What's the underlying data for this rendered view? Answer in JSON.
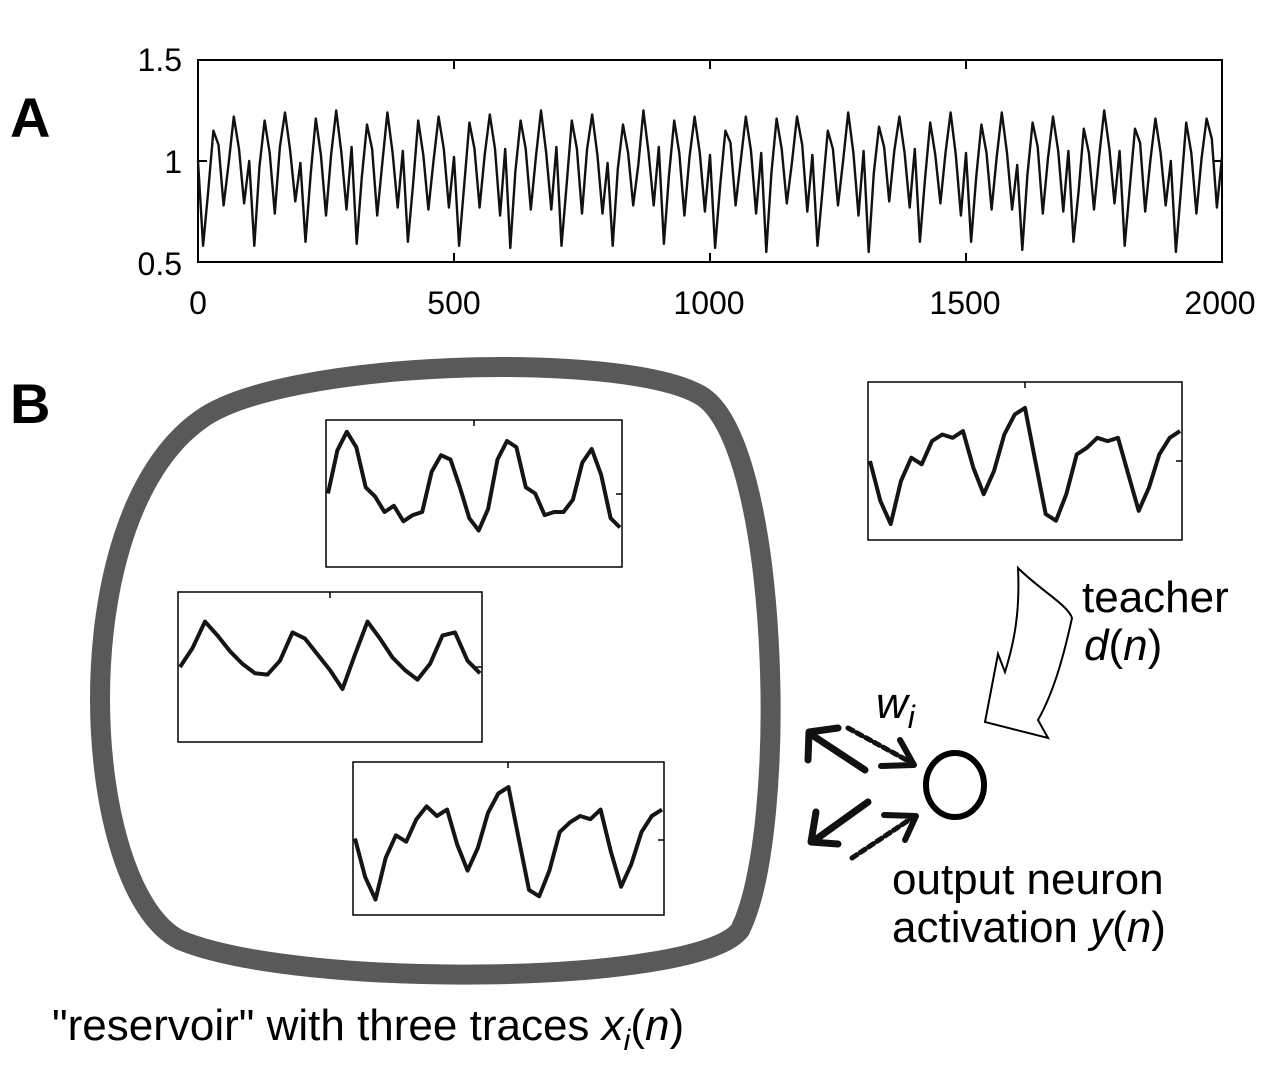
{
  "panels": {
    "a": "A",
    "b": "B"
  },
  "chart_data": {
    "type": "line",
    "x": [
      0,
      10,
      20,
      30,
      40,
      50,
      60,
      70,
      80,
      90,
      100,
      110,
      120,
      130,
      140,
      150,
      160,
      170,
      180,
      190,
      200,
      210,
      220,
      230,
      240,
      250,
      260,
      270,
      280,
      290,
      300,
      310,
      320,
      330,
      340,
      350,
      360,
      370,
      380,
      390,
      400,
      410,
      420,
      430,
      440,
      450,
      460,
      470,
      480,
      490,
      500,
      510,
      520,
      530,
      540,
      550,
      560,
      570,
      580,
      590,
      600,
      610,
      620,
      630,
      640,
      650,
      660,
      670,
      680,
      690,
      700,
      710,
      720,
      730,
      740,
      750,
      760,
      770,
      780,
      790,
      800,
      810,
      820,
      830,
      840,
      850,
      860,
      870,
      880,
      890,
      900,
      910,
      920,
      930,
      940,
      950,
      960,
      970,
      980,
      990,
      1000,
      1010,
      1020,
      1030,
      1040,
      1050,
      1060,
      1070,
      1080,
      1090,
      1100,
      1110,
      1120,
      1130,
      1140,
      1150,
      1160,
      1170,
      1180,
      1190,
      1200,
      1210,
      1220,
      1230,
      1240,
      1250,
      1260,
      1270,
      1280,
      1290,
      1300,
      1310,
      1320,
      1330,
      1340,
      1350,
      1360,
      1370,
      1380,
      1390,
      1400,
      1410,
      1420,
      1430,
      1440,
      1450,
      1460,
      1470,
      1480,
      1490,
      1500,
      1510,
      1520,
      1530,
      1540,
      1550,
      1560,
      1570,
      1580,
      1590,
      1600,
      1610,
      1620,
      1630,
      1640,
      1650,
      1660,
      1670,
      1680,
      1690,
      1700,
      1710,
      1720,
      1730,
      1740,
      1750,
      1760,
      1770,
      1780,
      1790,
      1800,
      1810,
      1820,
      1830,
      1840,
      1850,
      1860,
      1870,
      1880,
      1890,
      1900,
      1910,
      1920,
      1930,
      1940,
      1950,
      1960,
      1970,
      1980,
      1990,
      2000
    ],
    "y": [
      1.0,
      0.58,
      0.85,
      1.15,
      1.08,
      0.78,
      0.99,
      1.22,
      1.06,
      0.79,
      1.0,
      0.58,
      0.97,
      1.2,
      1.04,
      0.74,
      1.07,
      1.24,
      1.05,
      0.8,
      0.99,
      0.6,
      0.93,
      1.21,
      1.03,
      0.73,
      1.03,
      1.25,
      1.04,
      0.76,
      1.07,
      0.59,
      0.92,
      1.18,
      1.06,
      0.73,
      0.99,
      1.24,
      1.04,
      0.77,
      1.05,
      0.6,
      0.88,
      1.2,
      1.03,
      0.76,
      1.0,
      1.22,
      1.06,
      0.77,
      1.02,
      0.58,
      0.88,
      1.19,
      1.06,
      0.77,
      1.03,
      1.23,
      1.06,
      0.73,
      1.06,
      0.57,
      0.95,
      1.2,
      1.06,
      0.76,
      1.02,
      1.25,
      1.04,
      0.76,
      1.07,
      0.58,
      0.88,
      1.2,
      1.06,
      0.74,
      1.06,
      1.23,
      1.03,
      0.74,
      0.99,
      0.58,
      0.96,
      1.18,
      1.04,
      0.78,
      0.98,
      1.25,
      1.04,
      0.78,
      1.07,
      0.59,
      0.93,
      1.2,
      1.04,
      0.73,
      1.02,
      1.22,
      1.04,
      0.75,
      1.03,
      0.57,
      0.88,
      1.15,
      1.09,
      0.78,
      1.0,
      1.22,
      1.05,
      0.74,
      1.04,
      0.55,
      0.94,
      1.21,
      1.06,
      0.79,
      0.99,
      1.22,
      1.08,
      0.75,
      1.03,
      0.58,
      0.86,
      1.15,
      1.06,
      0.78,
      1.0,
      1.24,
      1.04,
      0.73,
      1.05,
      0.55,
      0.94,
      1.17,
      1.07,
      0.8,
      1.05,
      1.22,
      1.04,
      0.77,
      1.06,
      0.6,
      0.91,
      1.19,
      1.03,
      0.79,
      1.04,
      1.24,
      1.03,
      0.73,
      1.04,
      0.6,
      0.92,
      1.18,
      1.04,
      0.76,
      1.02,
      1.24,
      1.04,
      0.76,
      0.98,
      0.56,
      0.93,
      1.19,
      1.07,
      0.74,
      1.01,
      1.22,
      1.05,
      0.75,
      1.05,
      0.6,
      0.85,
      1.16,
      1.04,
      0.76,
      1.02,
      1.25,
      1.06,
      0.79,
      1.05,
      0.58,
      0.87,
      1.16,
      1.09,
      0.75,
      1.0,
      1.21,
      1.04,
      0.78,
      1.0,
      0.55,
      0.86,
      1.19,
      1.04,
      0.74,
      1.01,
      1.21,
      1.11,
      0.77,
      1.02
    ],
    "xlim": [
      0,
      2000
    ],
    "ylim": [
      0.5,
      1.5
    ],
    "xticks": [
      "0",
      "500",
      "1000",
      "1500",
      "2000"
    ],
    "yticks": [
      "0.5",
      "1",
      "1.5"
    ],
    "grid": false
  },
  "diagram": {
    "caption_prefix": "\"reservoir\" with three traces ",
    "caption_var": "x",
    "caption_sub": "i",
    "caption_open": "(",
    "caption_arg": "n",
    "caption_close": ")",
    "teacher_word": "teacher",
    "teacher_var": "d",
    "teacher_open": "(",
    "teacher_arg": "n",
    "teacher_close": ")",
    "weight_var": "w",
    "weight_sub": "i",
    "output_line1": "output neuron",
    "output_line2_word": "activation ",
    "output_var": "y",
    "output_open": "(",
    "output_arg": "n",
    "output_close": ")",
    "colors": {
      "reservoir_outline": "#595959",
      "ink": "#1a1a1a"
    },
    "traces": {
      "reservoir_1": [
        0.0,
        0.7,
        1.0,
        0.75,
        0.1,
        -0.05,
        -0.3,
        -0.2,
        -0.45,
        -0.35,
        -0.3,
        0.35,
        0.62,
        0.55,
        0.1,
        -0.4,
        -0.6,
        -0.25,
        0.55,
        0.85,
        0.75,
        0.1,
        0.0,
        -0.35,
        -0.3,
        -0.3,
        -0.1,
        0.5,
        0.72,
        0.3,
        -0.4,
        -0.55
      ],
      "reservoir_2": [
        0.0,
        0.3,
        0.72,
        0.5,
        0.25,
        0.05,
        -0.1,
        -0.12,
        0.1,
        0.55,
        0.45,
        0.2,
        -0.05,
        -0.35,
        0.2,
        0.72,
        0.45,
        0.15,
        -0.05,
        -0.2,
        0.05,
        0.5,
        0.55,
        0.1,
        -0.1
      ],
      "reservoir_3": [
        0.0,
        -0.6,
        -0.95,
        -0.3,
        0.05,
        -0.05,
        0.3,
        0.5,
        0.35,
        0.45,
        -0.1,
        -0.5,
        -0.15,
        0.4,
        0.7,
        0.8,
        0.0,
        -0.8,
        -0.9,
        -0.5,
        0.1,
        0.25,
        0.35,
        0.3,
        0.45,
        -0.2,
        -0.75,
        -0.4,
        0.1,
        0.35,
        0.45
      ],
      "teacher": [
        0.0,
        -0.6,
        -0.95,
        -0.3,
        0.05,
        -0.05,
        0.3,
        0.4,
        0.35,
        0.45,
        -0.1,
        -0.5,
        -0.15,
        0.4,
        0.7,
        0.8,
        0.0,
        -0.8,
        -0.9,
        -0.5,
        0.1,
        0.2,
        0.35,
        0.3,
        0.35,
        -0.2,
        -0.75,
        -0.4,
        0.1,
        0.35,
        0.45
      ]
    }
  }
}
